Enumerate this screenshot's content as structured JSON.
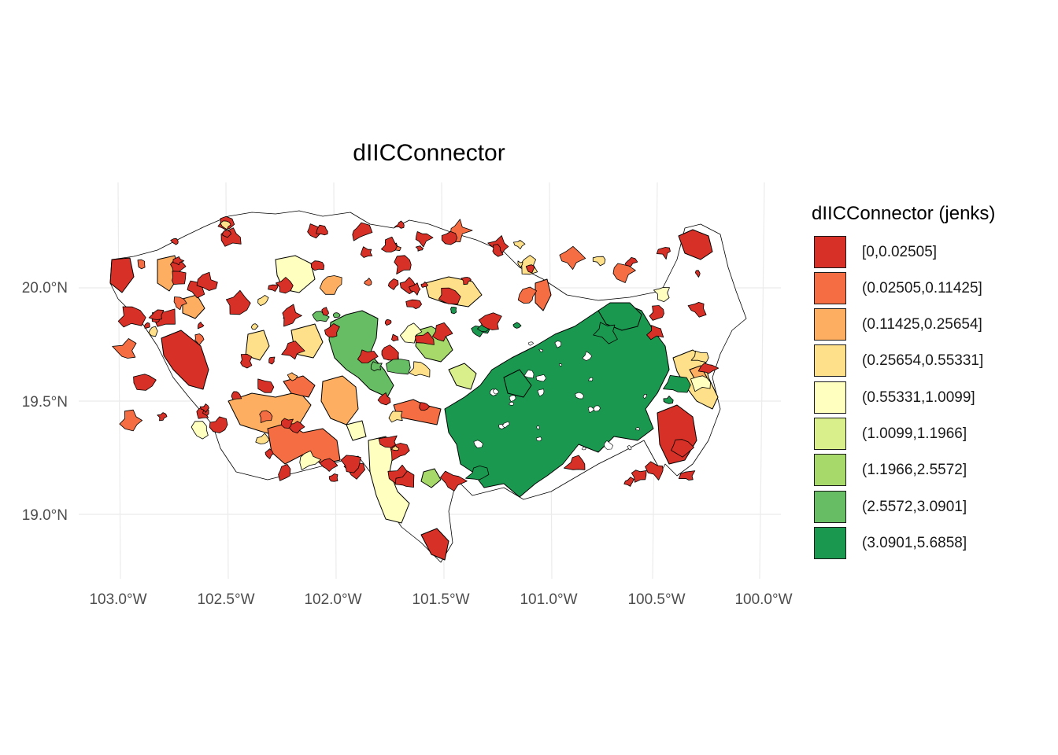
{
  "map": {
    "title": "dIICConnector",
    "y_ticks": [
      "20.0°N",
      "19.5°N",
      "19.0°N"
    ],
    "x_ticks": [
      "103.0°W",
      "102.5°W",
      "102.0°W",
      "101.5°W",
      "101.0°W",
      "100.5°W",
      "100.0°W"
    ],
    "background_color": "#ffffff",
    "grid_color": "#ebebeb",
    "outline_color": "#000000"
  },
  "legend": {
    "title": "dIICConnector (jenks)",
    "items": [
      {
        "label": "[0,0.02505]",
        "color": "#d73027"
      },
      {
        "label": "(0.02505,0.11425]",
        "color": "#f46d43"
      },
      {
        "label": "(0.11425,0.25654]",
        "color": "#fdae61"
      },
      {
        "label": "(0.25654,0.55331]",
        "color": "#fee08b"
      },
      {
        "label": "(0.55331,1.0099]",
        "color": "#ffffbf"
      },
      {
        "label": "(1.0099,1.1966]",
        "color": "#d9ef8b"
      },
      {
        "label": "(1.1966,2.5572]",
        "color": "#a6d96a"
      },
      {
        "label": "(2.5572,3.0901]",
        "color": "#66bd63"
      },
      {
        "label": "(3.0901,5.6858]",
        "color": "#1a9850"
      }
    ]
  }
}
